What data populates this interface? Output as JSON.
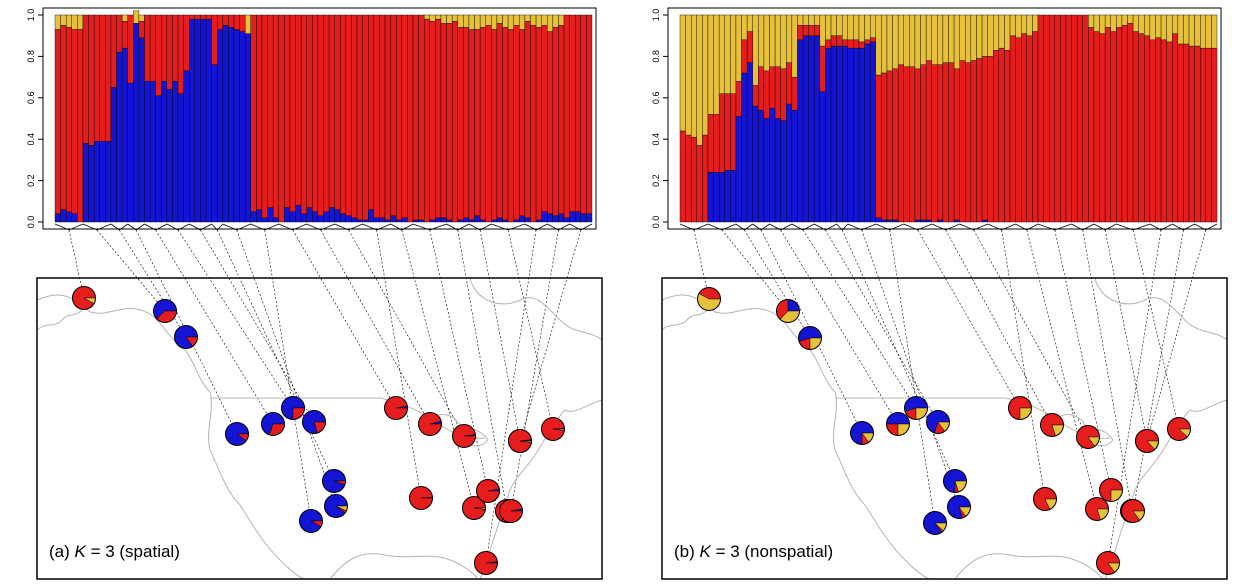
{
  "colors": {
    "k1": "#E8C13A",
    "k2": "#E61D1D",
    "k3": "#1414D4",
    "frame": "#000000",
    "map_lines": "#B4B4B4"
  },
  "chart_data": [
    {
      "type": "bar",
      "stacked": true,
      "panel": "a",
      "caption": {
        "prefix": "(a) ",
        "k_symbol": "K",
        "suffix": " = 3 (spatial)"
      },
      "title": "",
      "xlabel": "",
      "ylabel": "",
      "ylim": [
        0,
        1
      ],
      "y_ticks": [
        "0.0",
        "0.2",
        "0.4",
        "0.6",
        "0.8",
        "1.0"
      ],
      "series_colors": [
        "#1414D4",
        "#E61D1D",
        "#E8C13A"
      ],
      "n_individuals": 96,
      "individuals": {
        "blue": [
          0.04,
          0.06,
          0.05,
          0.04,
          0.0,
          0.38,
          0.37,
          0.39,
          0.39,
          0.39,
          0.65,
          0.82,
          0.84,
          0.67,
          0.96,
          0.89,
          0.68,
          0.68,
          0.61,
          0.68,
          0.64,
          0.68,
          0.62,
          0.73,
          0.98,
          0.98,
          0.98,
          0.98,
          0.76,
          0.93,
          0.95,
          0.94,
          0.93,
          0.92,
          0.91,
          0.05,
          0.06,
          0.02,
          0.07,
          0.02,
          0.0,
          0.07,
          0.05,
          0.08,
          0.04,
          0.07,
          0.05,
          0.03,
          0.05,
          0.07,
          0.06,
          0.04,
          0.03,
          0.02,
          0.01,
          0.01,
          0.06,
          0.02,
          0.02,
          0.01,
          0.03,
          0.01,
          0.02,
          0.0,
          0.01,
          0.01,
          0.0,
          0.01,
          0.02,
          0.02,
          0.01,
          0.0,
          0.01,
          0.02,
          0.01,
          0.03,
          0.01,
          0.0,
          0.01,
          0.02,
          0.01,
          0.0,
          0.01,
          0.03,
          0.02,
          0.0,
          0.01,
          0.05,
          0.04,
          0.03,
          0.04,
          0.02,
          0.05,
          0.05,
          0.04,
          0.04
        ],
        "yellow": [
          0.07,
          0.05,
          0.06,
          0.07,
          0.07,
          0.0,
          0.0,
          0.0,
          0.0,
          0.0,
          0.0,
          0.0,
          0.03,
          0.0,
          0.06,
          0.03,
          0.0,
          0.0,
          0.0,
          0.0,
          0.0,
          0.0,
          0.0,
          0.0,
          0.0,
          0.0,
          0.0,
          0.0,
          0.0,
          0.0,
          0.0,
          0.0,
          0.0,
          0.0,
          0.09,
          0.0,
          0.0,
          0.0,
          0.0,
          0.0,
          0.0,
          0.0,
          0.0,
          0.0,
          0.0,
          0.0,
          0.0,
          0.0,
          0.0,
          0.0,
          0.0,
          0.0,
          0.0,
          0.0,
          0.0,
          0.0,
          0.0,
          0.0,
          0.0,
          0.0,
          0.0,
          0.0,
          0.0,
          0.0,
          0.0,
          0.0,
          0.02,
          0.03,
          0.02,
          0.04,
          0.04,
          0.03,
          0.06,
          0.06,
          0.07,
          0.07,
          0.06,
          0.05,
          0.07,
          0.04,
          0.06,
          0.07,
          0.05,
          0.07,
          0.03,
          0.05,
          0.06,
          0.05,
          0.08,
          0.06,
          0.05,
          0.0,
          0.0,
          0.0,
          0.0,
          0.0
        ]
      },
      "map": {
        "pies": [
          {
            "shares": [
              0.0,
              0.92,
              0.08
            ]
          },
          {
            "shares": [
              0.62,
              0.38,
              0.0
            ]
          },
          {
            "shares": [
              0.85,
              0.15,
              0.0
            ]
          },
          {
            "shares": [
              0.9,
              0.1,
              0.0
            ]
          },
          {
            "shares": [
              0.7,
              0.3,
              0.0
            ]
          },
          {
            "shares": [
              0.75,
              0.25,
              0.0
            ]
          },
          {
            "shares": [
              0.8,
              0.2,
              0.0
            ]
          },
          {
            "shares": [
              0.95,
              0.05,
              0.0
            ]
          },
          {
            "shares": [
              0.9,
              0.03,
              0.07
            ]
          },
          {
            "shares": [
              0.92,
              0.08,
              0.0
            ]
          },
          {
            "shares": [
              0.03,
              0.97,
              0.0
            ]
          },
          {
            "shares": [
              0.04,
              0.96,
              0.0
            ]
          },
          {
            "shares": [
              0.02,
              0.98,
              0.0
            ]
          },
          {
            "shares": [
              0.01,
              0.99,
              0.0
            ]
          },
          {
            "shares": [
              0.0,
              0.98,
              0.02
            ]
          },
          {
            "shares": [
              0.03,
              0.97,
              0.0
            ]
          },
          {
            "shares": [
              0.02,
              0.98,
              0.0
            ]
          },
          {
            "shares": [
              0.01,
              0.97,
              0.02
            ]
          },
          {
            "shares": [
              0.01,
              0.97,
              0.02
            ]
          },
          {
            "shares": [
              0.02,
              0.98,
              0.0
            ]
          },
          {
            "shares": [
              0.03,
              0.97,
              0.0
            ]
          },
          {
            "shares": [
              0.02,
              0.96,
              0.02
            ]
          }
        ]
      }
    },
    {
      "type": "bar",
      "stacked": true,
      "panel": "b",
      "caption": {
        "prefix": "(b) ",
        "k_symbol": "K",
        "suffix": " = 3 (nonspatial)"
      },
      "title": "",
      "xlabel": "",
      "ylabel": "",
      "ylim": [
        0,
        1
      ],
      "y_ticks": [
        "0.0",
        "0.2",
        "0.4",
        "0.6",
        "0.8",
        "1.0"
      ],
      "series_colors": [
        "#1414D4",
        "#E61D1D",
        "#E8C13A"
      ],
      "n_individuals": 96,
      "individuals": {
        "blue": [
          0.0,
          0.0,
          0.0,
          0.0,
          0.0,
          0.24,
          0.24,
          0.24,
          0.25,
          0.25,
          0.51,
          0.72,
          0.77,
          0.56,
          0.54,
          0.5,
          0.55,
          0.5,
          0.49,
          0.57,
          0.54,
          0.88,
          0.9,
          0.9,
          0.9,
          0.63,
          0.84,
          0.85,
          0.85,
          0.85,
          0.84,
          0.84,
          0.84,
          0.86,
          0.87,
          0.02,
          0.01,
          0.01,
          0.01,
          0.0,
          0.0,
          0.0,
          0.01,
          0.01,
          0.01,
          0.0,
          0.01,
          0.0,
          0.0,
          0.01,
          0.0,
          0.0,
          0.0,
          0.0,
          0.01,
          0.0,
          0.0,
          0.0,
          0.0,
          0.0,
          0.0,
          0.0,
          0.0,
          0.0,
          0.0,
          0.0,
          0.0,
          0.0,
          0.0,
          0.0,
          0.0,
          0.0,
          0.0,
          0.0,
          0.0,
          0.0,
          0.0,
          0.0,
          0.0,
          0.0,
          0.0,
          0.0,
          0.0,
          0.0,
          0.0,
          0.0,
          0.0,
          0.0,
          0.0,
          0.0,
          0.0,
          0.0,
          0.0,
          0.0,
          0.0,
          0.0
        ],
        "yellow": [
          0.56,
          0.58,
          0.59,
          0.63,
          0.58,
          0.48,
          0.48,
          0.38,
          0.38,
          0.38,
          0.32,
          0.12,
          0.08,
          0.34,
          0.25,
          0.27,
          0.25,
          0.25,
          0.26,
          0.23,
          0.3,
          0.05,
          0.05,
          0.05,
          0.05,
          0.15,
          0.12,
          0.1,
          0.1,
          0.12,
          0.12,
          0.12,
          0.13,
          0.12,
          0.11,
          0.29,
          0.28,
          0.27,
          0.26,
          0.24,
          0.25,
          0.25,
          0.26,
          0.24,
          0.22,
          0.24,
          0.24,
          0.23,
          0.23,
          0.26,
          0.22,
          0.23,
          0.22,
          0.21,
          0.2,
          0.2,
          0.17,
          0.16,
          0.17,
          0.1,
          0.11,
          0.09,
          0.1,
          0.08,
          0.0,
          0.0,
          0.0,
          0.0,
          0.0,
          0.0,
          0.0,
          0.0,
          0.0,
          0.06,
          0.08,
          0.09,
          0.06,
          0.08,
          0.06,
          0.05,
          0.04,
          0.08,
          0.09,
          0.1,
          0.12,
          0.11,
          0.12,
          0.13,
          0.09,
          0.14,
          0.14,
          0.15,
          0.15,
          0.16,
          0.16,
          0.16
        ]
      },
      "map": {
        "pies": [
          {
            "shares": [
              0.0,
              0.42,
              0.58
            ]
          },
          {
            "shares": [
              0.25,
              0.38,
              0.37
            ]
          },
          {
            "shares": [
              0.55,
              0.2,
              0.25
            ]
          },
          {
            "shares": [
              0.75,
              0.1,
              0.15
            ]
          },
          {
            "shares": [
              0.5,
              0.25,
              0.25
            ]
          },
          {
            "shares": [
              0.55,
              0.2,
              0.25
            ]
          },
          {
            "shares": [
              0.7,
              0.15,
              0.15
            ]
          },
          {
            "shares": [
              0.75,
              0.05,
              0.2
            ]
          },
          {
            "shares": [
              0.8,
              0.05,
              0.15
            ]
          },
          {
            "shares": [
              0.85,
              0.03,
              0.12
            ]
          },
          {
            "shares": [
              0.0,
              0.75,
              0.25
            ]
          },
          {
            "shares": [
              0.0,
              0.8,
              0.2
            ]
          },
          {
            "shares": [
              0.0,
              0.85,
              0.15
            ]
          },
          {
            "shares": [
              0.0,
              0.82,
              0.18
            ]
          },
          {
            "shares": [
              0.0,
              0.8,
              0.2
            ]
          },
          {
            "shares": [
              0.0,
              0.75,
              0.25
            ]
          },
          {
            "shares": [
              0.0,
              0.82,
              0.18
            ]
          },
          {
            "shares": [
              0.0,
              0.85,
              0.15
            ]
          },
          {
            "shares": [
              0.0,
              0.88,
              0.12
            ]
          },
          {
            "shares": [
              0.0,
              0.85,
              0.15
            ]
          },
          {
            "shares": [
              0.0,
              0.85,
              0.15
            ]
          },
          {
            "shares": [
              0.0,
              0.87,
              0.13
            ]
          }
        ]
      }
    }
  ]
}
